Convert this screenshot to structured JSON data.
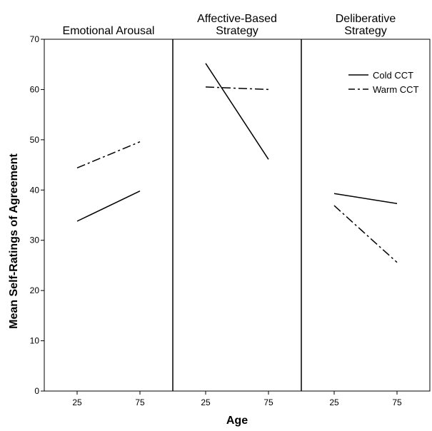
{
  "chart_data": {
    "type": "line",
    "xlabel": "Age",
    "ylabel": "Mean Self-Ratings of Agreement",
    "ylim": [
      0,
      70
    ],
    "yticks": [
      0,
      10,
      20,
      30,
      40,
      50,
      60,
      70
    ],
    "xticks": [
      25,
      75
    ],
    "legend_position": "top-right",
    "legend": [
      {
        "name": "Cold CCT",
        "dash": "solid"
      },
      {
        "name": "Warm CCT",
        "dash": "dash-dot"
      }
    ],
    "panels": [
      {
        "title_lines": [
          "Emotional Arousal"
        ],
        "series": [
          {
            "name": "Cold CCT",
            "x": [
              25,
              75
            ],
            "values": [
              33.8,
              39.8
            ]
          },
          {
            "name": "Warm CCT",
            "x": [
              25,
              75
            ],
            "values": [
              44.4,
              49.6
            ]
          }
        ]
      },
      {
        "title_lines": [
          "Affective-Based",
          "Strategy"
        ],
        "series": [
          {
            "name": "Cold CCT",
            "x": [
              25,
              75
            ],
            "values": [
              65.2,
              46.1
            ]
          },
          {
            "name": "Warm CCT",
            "x": [
              25,
              75
            ],
            "values": [
              60.5,
              60.0
            ]
          }
        ]
      },
      {
        "title_lines": [
          "Deliberative",
          "Strategy"
        ],
        "series": [
          {
            "name": "Cold CCT",
            "x": [
              25,
              75
            ],
            "values": [
              39.3,
              37.3
            ]
          },
          {
            "name": "Warm CCT",
            "x": [
              25,
              75
            ],
            "values": [
              36.9,
              25.6
            ]
          }
        ]
      }
    ]
  }
}
